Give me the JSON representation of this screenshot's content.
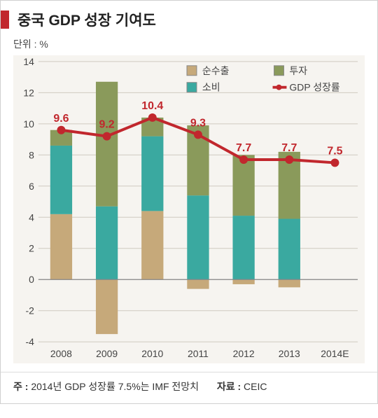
{
  "header": {
    "title": "중국 GDP 성장 기여도"
  },
  "unit_label": "단위 : %",
  "chart": {
    "type": "stacked-bar-with-line",
    "background_color": "#f6f4f0",
    "plot_bg": "#f6f4f0",
    "grid_color": "#cfcabf",
    "axis_color": "#888",
    "text_color": "#444",
    "label_fontsize": 14,
    "tick_fontsize": 14,
    "ylim": [
      -4,
      14
    ],
    "ytick_step": 2,
    "yticks": [
      -4,
      -2,
      0,
      2,
      4,
      6,
      8,
      10,
      12,
      14
    ],
    "xlabels": [
      "2008",
      "2009",
      "2010",
      "2011",
      "2012",
      "2013",
      "2014E"
    ],
    "bar_width": 0.48,
    "series": {
      "net_exports": {
        "label": "순수출",
        "color": "#c6a97a"
      },
      "investment": {
        "label": "투자",
        "color": "#8a9a5b"
      },
      "consumption": {
        "label": "소비",
        "color": "#3aa9a0"
      },
      "gdp_line": {
        "label": "GDP 성장률",
        "color": "#c1272d",
        "line_width": 4,
        "marker_size": 6
      }
    },
    "legend_position": "top-right-inside",
    "legend_box_color": "#888",
    "data": {
      "net_exports": [
        4.2,
        -3.5,
        4.4,
        -0.6,
        -0.3,
        -0.5,
        null
      ],
      "investment": [
        1.0,
        8.0,
        1.2,
        4.5,
        3.9,
        4.3,
        null
      ],
      "consumption": [
        4.4,
        4.7,
        4.8,
        5.4,
        4.1,
        3.9,
        null
      ],
      "gdp_growth": [
        9.6,
        9.2,
        10.4,
        9.3,
        7.7,
        7.7,
        7.5
      ],
      "gdp_labels": [
        "9.6",
        "9.2",
        "10.4",
        "9.3",
        "7.7",
        "7.7",
        "7.5"
      ]
    },
    "value_label_color": "#c1272d",
    "value_label_fontsize": 16
  },
  "footer": {
    "note_label": "주 :",
    "note_text": "2014년 GDP 성장률 7.5%는 IMF 전망치",
    "source_label": "자료 :",
    "source_text": "CEIC"
  }
}
